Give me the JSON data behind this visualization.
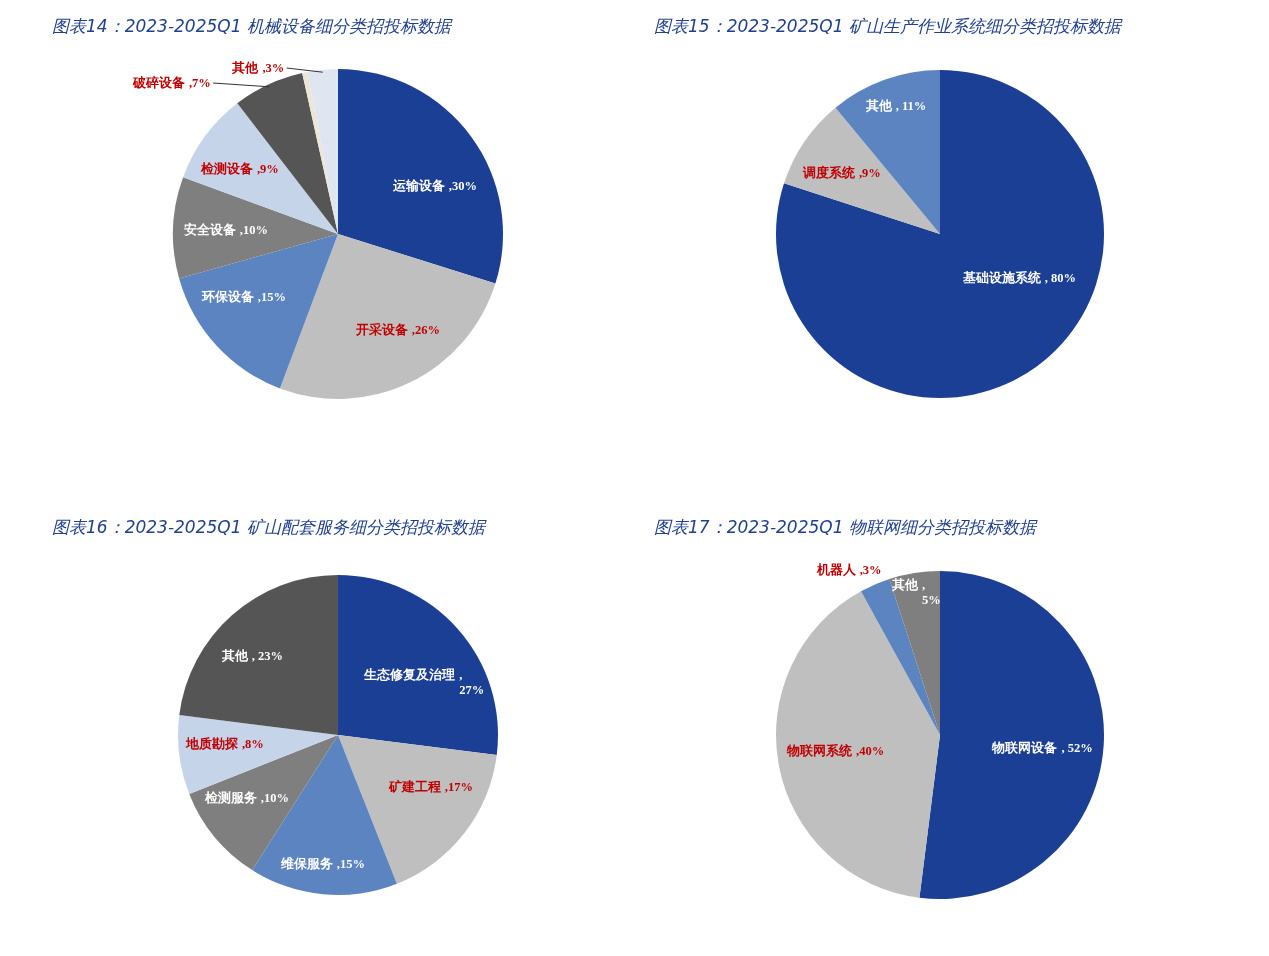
{
  "chart_data": [
    {
      "type": "pie",
      "title": "图表14：2023-2025Q1 机械设备细分类招投标数据",
      "categories": [
        "运输设备",
        "开采设备",
        "环保设备",
        "安全设备",
        "检测设备",
        "破碎设备",
        null,
        "其他"
      ],
      "values": [
        30,
        26,
        15,
        10,
        9,
        7,
        0.5,
        3
      ],
      "colors": [
        "#1b3f94",
        "#bfbfbf",
        "#5b84c1",
        "#7f7f7f",
        "#c6d4ea",
        "#555555",
        "#ece6d2",
        "#dfe6f1"
      ],
      "value_labels": [
        ",30%",
        ",26%",
        ",15%",
        ",10%",
        ",9%",
        ",7%",
        null,
        ",3%"
      ]
    },
    {
      "type": "pie",
      "title": "图表15：2023-2025Q1 矿山生产作业系统细分类招投标数据",
      "categories": [
        "基础设施系统",
        "调度系统",
        "其他"
      ],
      "values": [
        80,
        9,
        11
      ],
      "colors": [
        "#1b3f94",
        "#bfbfbf",
        "#5b84c1"
      ],
      "value_labels": [
        ", 80%",
        ",9%",
        ", 11%"
      ]
    },
    {
      "type": "pie",
      "title": "图表16：2023-2025Q1 矿山配套服务细分类招投标数据",
      "categories": [
        "生态修复及治理",
        "矿建工程",
        "维保服务",
        "检测服务",
        "地质勘探",
        "其他"
      ],
      "values": [
        27,
        17,
        15,
        10,
        8,
        23
      ],
      "colors": [
        "#1b3f94",
        "#bfbfbf",
        "#5b84c1",
        "#7f7f7f",
        "#c6d4ea",
        "#555555"
      ],
      "value_labels": [
        ",\n27%",
        ",17%",
        ",15%",
        ",10%",
        ",8%",
        ", 23%"
      ]
    },
    {
      "type": "pie",
      "title": "图表17：2023-2025Q1 物联网细分类招投标数据",
      "categories": [
        "物联网设备",
        "物联网系统",
        "机器人",
        "其他"
      ],
      "values": [
        52,
        40,
        3,
        5
      ],
      "colors": [
        "#1b3f94",
        "#bfbfbf",
        "#5b84c1",
        "#7f7f7f"
      ],
      "value_labels": [
        ", 52%",
        ",40%",
        ",3%",
        ",\n5%"
      ]
    }
  ]
}
